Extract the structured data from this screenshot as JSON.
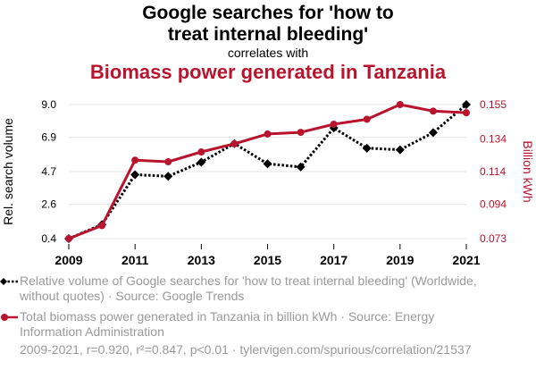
{
  "title_line1": "Google searches for 'how to",
  "title_line2": "treat internal bleeding'",
  "subtitle": "correlates with",
  "title2": "Biomass power generated in Tanzania",
  "chart_data": {
    "type": "line",
    "x": [
      2009,
      2010,
      2011,
      2012,
      2013,
      2014,
      2015,
      2016,
      2017,
      2018,
      2019,
      2020,
      2021
    ],
    "x_ticks": [
      "2009",
      "2011",
      "2013",
      "2015",
      "2017",
      "2019",
      "2021"
    ],
    "y_left": {
      "label": "Rel. search volume",
      "ticks": [
        "0.4",
        "2.6",
        "4.7",
        "6.9",
        "9.0"
      ],
      "range": [
        0.4,
        9.0
      ]
    },
    "y_right": {
      "label": "Billion kWh",
      "ticks": [
        "0.073",
        "0.094",
        "0.114",
        "0.134",
        "0.155"
      ],
      "range": [
        0.073,
        0.155
      ]
    },
    "series": [
      {
        "name": "Relative volume of Google searches for 'how to treat internal bleeding' (Worldwide, without quotes) · Source: Google Trends",
        "axis": "left",
        "color": "#000000",
        "style": "dotted",
        "marker": "diamond",
        "values": [
          0.4,
          1.3,
          4.5,
          4.4,
          5.3,
          6.5,
          5.2,
          5.0,
          7.5,
          6.2,
          6.1,
          7.2,
          9.0
        ]
      },
      {
        "name": "Total biomass power generated in Tanzania in billion kWh · Source: Energy Information Administration",
        "axis": "right",
        "color": "#b8142e",
        "style": "solid",
        "marker": "circle",
        "values": [
          0.073,
          0.081,
          0.121,
          0.12,
          0.126,
          0.131,
          0.137,
          0.138,
          0.143,
          0.146,
          0.155,
          0.151,
          0.15
        ]
      }
    ],
    "grid": true
  },
  "legend": {
    "item1": "Relative volume of Google searches for 'how to treat internal bleeding' (Worldwide, without quotes) · Source: Google Trends",
    "item2": "Total biomass power generated in Tanzania in billion kWh · Source: Energy Information Administration"
  },
  "footer": "2009-2021, r=0.920, r²=0.847, p<0.01 · tylervigen.com/spurious/correlation/21537"
}
